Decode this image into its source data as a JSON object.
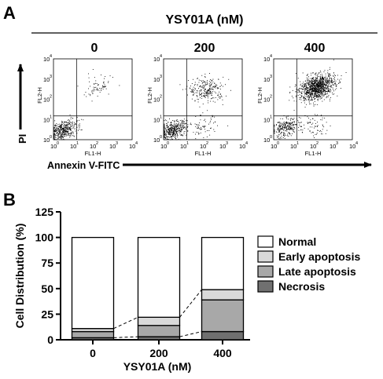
{
  "panel_a": {
    "panel_label": "A",
    "treatment_header": "YSY01A (nM)",
    "concentrations": [
      "0",
      "200",
      "400"
    ],
    "y_axis_arrow_label": "PI",
    "x_axis_arrow_label": "Annexin V-FITC",
    "plot_ylabel": "FL2-H",
    "plot_xlabel": "FL1-H",
    "tick_labels": [
      "10",
      "10",
      "10",
      "10",
      "10"
    ],
    "tick_exponents": [
      "0",
      "1",
      "2",
      "3",
      "4"
    ]
  },
  "panel_b": {
    "panel_label": "B"
  },
  "chart_data": [
    {
      "type": "scatter",
      "title": "0",
      "xlabel": "FL1-H",
      "ylabel": "FL2-H",
      "x_scale": "log",
      "y_scale": "log",
      "xlim": [
        1,
        10000
      ],
      "ylim": [
        1,
        10000
      ],
      "quadrant_gates": {
        "x": 15,
        "y": 15
      },
      "populations": [
        {
          "quadrant": "lower-left",
          "center": [
            3,
            3
          ],
          "relative_density": "high"
        },
        {
          "quadrant": "upper-right",
          "center": [
            150,
            400
          ],
          "relative_density": "low"
        }
      ]
    },
    {
      "type": "scatter",
      "title": "200",
      "xlabel": "FL1-H",
      "ylabel": "FL2-H",
      "x_scale": "log",
      "y_scale": "log",
      "xlim": [
        1,
        10000
      ],
      "ylim": [
        1,
        10000
      ],
      "quadrant_gates": {
        "x": 15,
        "y": 15
      },
      "populations": [
        {
          "quadrant": "lower-left",
          "center": [
            3,
            3
          ],
          "relative_density": "high"
        },
        {
          "quadrant": "upper-right",
          "center": [
            150,
            300
          ],
          "relative_density": "medium"
        },
        {
          "quadrant": "lower-right",
          "center": [
            100,
            4
          ],
          "relative_density": "low"
        }
      ]
    },
    {
      "type": "scatter",
      "title": "400",
      "xlabel": "FL1-H",
      "ylabel": "FL2-H",
      "x_scale": "log",
      "y_scale": "log",
      "xlim": [
        1,
        10000
      ],
      "ylim": [
        1,
        10000
      ],
      "quadrant_gates": {
        "x": 15,
        "y": 15
      },
      "populations": [
        {
          "quadrant": "lower-left",
          "center": [
            4,
            4
          ],
          "relative_density": "medium"
        },
        {
          "quadrant": "upper-right",
          "center": [
            150,
            400
          ],
          "relative_density": "very high"
        },
        {
          "quadrant": "lower-right",
          "center": [
            100,
            5
          ],
          "relative_density": "low"
        }
      ]
    },
    {
      "type": "bar",
      "stacked": true,
      "categories": [
        "0",
        "200",
        "400"
      ],
      "xlabel": "YSY01A (nM)",
      "ylabel": "Cell Distribution (%)",
      "ylim": [
        0,
        125
      ],
      "yticks": [
        "0",
        "25",
        "50",
        "75",
        "100",
        "125"
      ],
      "legend": "right",
      "grid": false,
      "series": [
        {
          "name": "Necrosis",
          "values": [
            2,
            3,
            8
          ],
          "color": "#707070"
        },
        {
          "name": "Late apoptosis",
          "values": [
            6,
            11,
            31
          ],
          "color": "#a8a8a8"
        },
        {
          "name": "Early apoptosis",
          "values": [
            3,
            8,
            10
          ],
          "color": "#d9d9d9"
        },
        {
          "name": "Normal",
          "values": [
            89,
            78,
            51
          ],
          "color": "#ffffff"
        }
      ],
      "legend_order": [
        "Normal",
        "Early apoptosis",
        "Late apoptosis",
        "Necrosis"
      ]
    }
  ]
}
